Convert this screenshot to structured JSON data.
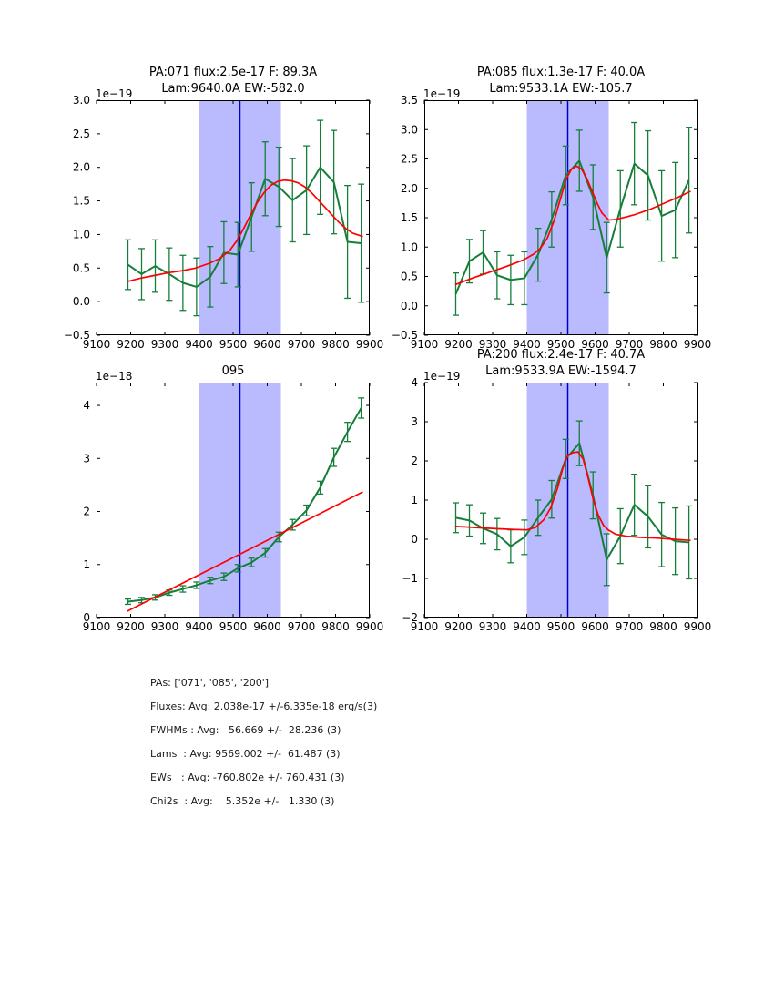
{
  "colors": {
    "data_line": "#157f3a",
    "fit_line": "#ff0000",
    "band": "rgba(0,0,255,0.27)",
    "vline": "#0000cc",
    "axis": "#000000"
  },
  "chart_data": [
    {
      "type": "line",
      "name": "pa-071",
      "titles": [
        "PA:071 flux:2.5e-17 F: 89.3A",
        "Lam:9640.0A EW:-582.0"
      ],
      "offset_label": "1e−19",
      "xlim": [
        9100,
        9900
      ],
      "ylim": [
        -0.5,
        3.0
      ],
      "xticks": [
        9100,
        9200,
        9300,
        9400,
        9500,
        9600,
        9700,
        9800,
        9900
      ],
      "xtick_labels": [
        "9100",
        "9200",
        "9300",
        "9400",
        "9500",
        "9600",
        "9700",
        "9800",
        "9900"
      ],
      "yticks": [
        -0.5,
        0.0,
        0.5,
        1.0,
        1.5,
        2.0,
        2.5,
        3.0
      ],
      "ytick_labels": [
        "−0.5",
        "0.0",
        "0.5",
        "1.0",
        "1.5",
        "2.0",
        "2.5",
        "3.0"
      ],
      "band": [
        9400,
        9640
      ],
      "vline": 9520,
      "x": [
        9192,
        9232,
        9272,
        9313,
        9353,
        9393,
        9433,
        9473,
        9514,
        9554,
        9594,
        9634,
        9674,
        9715,
        9755,
        9795,
        9835,
        9875
      ],
      "y": [
        0.55,
        0.41,
        0.53,
        0.41,
        0.28,
        0.22,
        0.37,
        0.73,
        0.7,
        1.26,
        1.83,
        1.71,
        1.51,
        1.66,
        2.0,
        1.78,
        0.89,
        0.87
      ],
      "yerr": [
        0.37,
        0.38,
        0.39,
        0.39,
        0.41,
        0.43,
        0.45,
        0.46,
        0.48,
        0.51,
        0.55,
        0.59,
        0.62,
        0.66,
        0.7,
        0.77,
        0.84,
        0.88
      ],
      "fit_x": [
        9190,
        9230,
        9270,
        9310,
        9350,
        9390,
        9430,
        9460,
        9490,
        9510,
        9530,
        9550,
        9570,
        9590,
        9610,
        9630,
        9650,
        9670,
        9690,
        9710,
        9730,
        9750,
        9770,
        9790,
        9810,
        9830,
        9850,
        9880
      ],
      "fit_y": [
        0.3,
        0.35,
        0.39,
        0.43,
        0.46,
        0.5,
        0.57,
        0.64,
        0.76,
        0.9,
        1.08,
        1.28,
        1.47,
        1.62,
        1.73,
        1.79,
        1.81,
        1.8,
        1.77,
        1.71,
        1.62,
        1.51,
        1.4,
        1.29,
        1.18,
        1.09,
        1.02,
        0.97
      ]
    },
    {
      "type": "line",
      "name": "pa-085",
      "titles": [
        "PA:085 flux:1.3e-17 F: 40.0A",
        "Lam:9533.1A EW:-105.7"
      ],
      "offset_label": "1e−19",
      "xlim": [
        9100,
        9900
      ],
      "ylim": [
        -0.5,
        3.5
      ],
      "xticks": [
        9100,
        9200,
        9300,
        9400,
        9500,
        9600,
        9700,
        9800,
        9900
      ],
      "xtick_labels": [
        "9100",
        "9200",
        "9300",
        "9400",
        "9500",
        "9600",
        "9700",
        "9800",
        "9900"
      ],
      "yticks": [
        -0.5,
        0.0,
        0.5,
        1.0,
        1.5,
        2.0,
        2.5,
        3.0,
        3.5
      ],
      "ytick_labels": [
        "−0.5",
        "0.0",
        "0.5",
        "1.0",
        "1.5",
        "2.0",
        "2.5",
        "3.0",
        "3.5"
      ],
      "band": [
        9400,
        9640
      ],
      "vline": 9520,
      "x": [
        9192,
        9232,
        9272,
        9313,
        9353,
        9393,
        9433,
        9473,
        9514,
        9554,
        9594,
        9634,
        9674,
        9715,
        9755,
        9795,
        9835,
        9875
      ],
      "y": [
        0.2,
        0.76,
        0.91,
        0.52,
        0.44,
        0.47,
        0.87,
        1.47,
        2.22,
        2.47,
        1.85,
        0.82,
        1.65,
        2.42,
        2.22,
        1.53,
        1.63,
        2.14
      ],
      "yerr": [
        0.36,
        0.37,
        0.37,
        0.4,
        0.42,
        0.45,
        0.45,
        0.47,
        0.5,
        0.52,
        0.55,
        0.6,
        0.65,
        0.7,
        0.76,
        0.77,
        0.81,
        0.9
      ],
      "fit_x": [
        9190,
        9240,
        9290,
        9340,
        9390,
        9420,
        9440,
        9460,
        9480,
        9500,
        9515,
        9530,
        9545,
        9560,
        9575,
        9590,
        9605,
        9620,
        9640,
        9660,
        9690,
        9720,
        9760,
        9800,
        9840,
        9880
      ],
      "fit_y": [
        0.36,
        0.47,
        0.57,
        0.67,
        0.78,
        0.88,
        0.98,
        1.15,
        1.45,
        1.85,
        2.15,
        2.32,
        2.38,
        2.33,
        2.18,
        1.97,
        1.76,
        1.58,
        1.46,
        1.47,
        1.51,
        1.56,
        1.64,
        1.74,
        1.84,
        1.95
      ]
    },
    {
      "type": "line",
      "name": "095",
      "titles": [
        "095"
      ],
      "offset_label": "1e−18",
      "xlim": [
        9100,
        9900
      ],
      "ylim": [
        0,
        4.43
      ],
      "xticks": [
        9100,
        9200,
        9300,
        9400,
        9500,
        9600,
        9700,
        9800,
        9900
      ],
      "xtick_labels": [
        "9100",
        "9200",
        "9300",
        "9400",
        "9500",
        "9600",
        "9700",
        "9800",
        "9900"
      ],
      "yticks": [
        0,
        1,
        2,
        3,
        4
      ],
      "ytick_labels": [
        "0",
        "1",
        "2",
        "3",
        "4"
      ],
      "band": [
        9400,
        9640
      ],
      "vline": 9520,
      "x": [
        9192,
        9232,
        9272,
        9313,
        9353,
        9393,
        9433,
        9473,
        9514,
        9554,
        9594,
        9634,
        9674,
        9715,
        9755,
        9795,
        9835,
        9875
      ],
      "y": [
        0.3,
        0.33,
        0.38,
        0.47,
        0.54,
        0.61,
        0.7,
        0.77,
        0.93,
        1.04,
        1.22,
        1.52,
        1.75,
        2.02,
        2.45,
        3.02,
        3.5,
        3.95
      ],
      "yerr": [
        0.05,
        0.05,
        0.05,
        0.05,
        0.06,
        0.06,
        0.06,
        0.07,
        0.07,
        0.08,
        0.08,
        0.09,
        0.1,
        0.1,
        0.12,
        0.17,
        0.18,
        0.19
      ],
      "fit_x": [
        9190,
        9880
      ],
      "fit_y": [
        0.12,
        2.37
      ]
    },
    {
      "type": "line",
      "name": "pa-200",
      "titles": [
        "PA:200 flux:2.4e-17 F: 40.7A",
        "Lam:9533.9A EW:-1594.7"
      ],
      "offset_label": "1e−19",
      "xlim": [
        9100,
        9900
      ],
      "ylim": [
        -2,
        4
      ],
      "xticks": [
        9100,
        9200,
        9300,
        9400,
        9500,
        9600,
        9700,
        9800,
        9900
      ],
      "xtick_labels": [
        "9100",
        "9200",
        "9300",
        "9400",
        "9500",
        "9600",
        "9700",
        "9800",
        "9900"
      ],
      "yticks": [
        -2,
        -1,
        0,
        1,
        2,
        3,
        4
      ],
      "ytick_labels": [
        "−2",
        "−1",
        "0",
        "1",
        "2",
        "3",
        "4"
      ],
      "band": [
        9400,
        9640
      ],
      "vline": 9520,
      "x": [
        9192,
        9232,
        9272,
        9313,
        9353,
        9393,
        9433,
        9473,
        9514,
        9554,
        9594,
        9634,
        9674,
        9715,
        9755,
        9795,
        9835,
        9875
      ],
      "y": [
        0.55,
        0.48,
        0.28,
        0.13,
        -0.18,
        0.05,
        0.55,
        1.02,
        2.05,
        2.45,
        1.12,
        -0.52,
        0.08,
        0.88,
        0.58,
        0.12,
        -0.05,
        -0.08
      ],
      "yerr": [
        0.38,
        0.4,
        0.39,
        0.4,
        0.42,
        0.44,
        0.45,
        0.48,
        0.5,
        0.57,
        0.6,
        0.66,
        0.7,
        0.78,
        0.8,
        0.82,
        0.85,
        0.93
      ],
      "fit_x": [
        9190,
        9250,
        9310,
        9360,
        9400,
        9425,
        9450,
        9470,
        9490,
        9505,
        9520,
        9535,
        9550,
        9565,
        9580,
        9595,
        9610,
        9625,
        9640,
        9660,
        9690,
        9730,
        9780,
        9830,
        9880
      ],
      "fit_y": [
        0.33,
        0.3,
        0.27,
        0.25,
        0.24,
        0.3,
        0.5,
        0.8,
        1.3,
        1.8,
        2.15,
        2.21,
        2.23,
        2.05,
        1.55,
        1.0,
        0.6,
        0.35,
        0.23,
        0.13,
        0.08,
        0.05,
        0.03,
        0.0,
        -0.03
      ]
    }
  ],
  "summary": {
    "lines": [
      "PAs: ['071', '085', '200']",
      "Fluxes: Avg: 2.038e-17 +/-6.335e-18 erg/s(3)",
      "FWHMs : Avg:   56.669 +/-  28.236 (3)",
      "Lams  : Avg: 9569.002 +/-  61.487 (3)",
      "EWs   : Avg: -760.802e +/- 760.431 (3)",
      "Chi2s  : Avg:    5.352e +/-   1.330 (3)"
    ]
  }
}
